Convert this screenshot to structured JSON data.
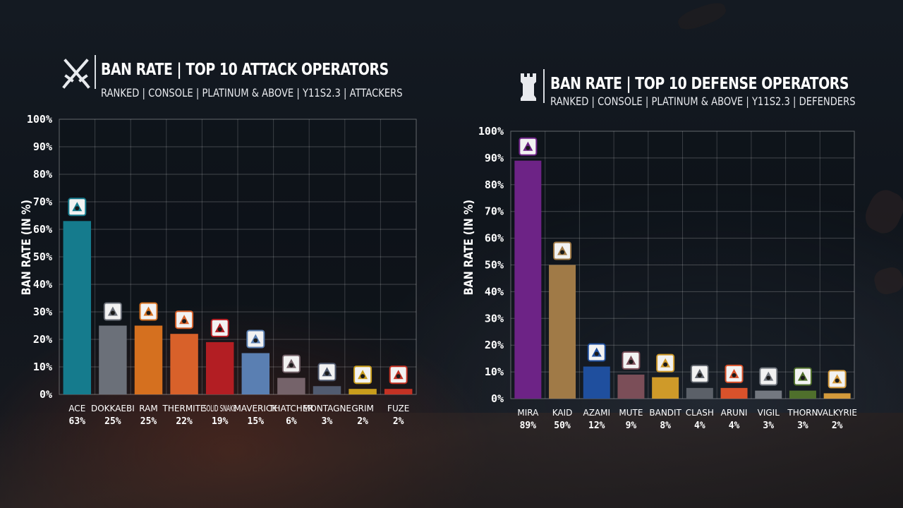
{
  "colors": {
    "ace": "#157b8d",
    "dokkaebi": "#6b7079",
    "ram": "#d5701f",
    "thermite": "#d8612a",
    "solid_snake": "#b31e23",
    "maverick": "#5a7fb2",
    "thatcher": "#75636a",
    "montagne": "#515b70",
    "grim": "#c99d1c",
    "fuze": "#c33224",
    "mira": "#6d2386",
    "kaid": "#a07a47",
    "azami": "#1f4f9e",
    "mute": "#7b4e58",
    "bandit": "#cf9a29",
    "clash": "#5b6068",
    "aruni": "#d9522b",
    "vigil": "#737880",
    "thorn": "#4f6f2c",
    "valkyrie": "#d39a3b"
  },
  "chart_data": [
    {
      "type": "bar",
      "title": "BAN RATE | TOP 10 ATTACK OPERATORS",
      "subtitle": "RANKED | CONSOLE | PLATINUM & ABOVE | Y11S2.3 | ATTACKERS",
      "title_icon": "crossed-swords-icon",
      "ylabel": "BAN RATE (IN %)",
      "xlabel": "",
      "ylim": [
        0,
        100
      ],
      "yticks": [
        "0%",
        "10%",
        "20%",
        "30%",
        "40%",
        "50%",
        "60%",
        "70%",
        "80%",
        "90%",
        "100%"
      ],
      "grid": true,
      "categories": [
        "ACE",
        "DOKKAEBI",
        "RAM",
        "THERMITE",
        "SOLID SNAKE",
        "MAVERICK",
        "THATCHER",
        "MONTAGNE",
        "GRIM",
        "FUZE"
      ],
      "values": [
        63,
        25,
        25,
        22,
        19,
        15,
        6,
        3,
        2,
        2
      ],
      "value_labels": [
        "63%",
        "25%",
        "25%",
        "22%",
        "19%",
        "15%",
        "6%",
        "3%",
        "2%",
        "2%"
      ],
      "bar_colors": [
        "#157b8d",
        "#6b7079",
        "#d5701f",
        "#d8612a",
        "#b31e23",
        "#5a7fb2",
        "#75636a",
        "#515b70",
        "#c99d1c",
        "#c33224"
      ],
      "icons": [
        "ace-icon",
        "dokkaebi-icon",
        "ram-icon",
        "thermite-icon",
        "solid-snake-icon",
        "maverick-icon",
        "thatcher-icon",
        "montagne-icon",
        "grim-icon",
        "fuze-icon"
      ]
    },
    {
      "type": "bar",
      "title": "BAN RATE | TOP 10 DEFENSE OPERATORS",
      "subtitle": "RANKED | CONSOLE | PLATINUM & ABOVE | Y11S2.3 | DEFENDERS",
      "title_icon": "tower-icon",
      "ylabel": "BAN RATE (IN %)",
      "xlabel": "",
      "ylim": [
        0,
        100
      ],
      "yticks": [
        "0%",
        "10%",
        "20%",
        "30%",
        "40%",
        "50%",
        "60%",
        "70%",
        "80%",
        "90%",
        "100%"
      ],
      "grid": true,
      "categories": [
        "MIRA",
        "KAID",
        "AZAMI",
        "MUTE",
        "BANDIT",
        "CLASH",
        "ARUNI",
        "VIGIL",
        "THORN",
        "VALKYRIE"
      ],
      "values": [
        89,
        50,
        12,
        9,
        8,
        4,
        4,
        3,
        3,
        2
      ],
      "value_labels": [
        "89%",
        "50%",
        "12%",
        "9%",
        "8%",
        "4%",
        "4%",
        "3%",
        "3%",
        "2%"
      ],
      "bar_colors": [
        "#6d2386",
        "#a07a47",
        "#1f4f9e",
        "#7b4e58",
        "#cf9a29",
        "#5b6068",
        "#d9522b",
        "#737880",
        "#4f6f2c",
        "#d39a3b"
      ],
      "icons": [
        "mira-icon",
        "kaid-icon",
        "azami-icon",
        "mute-icon",
        "bandit-icon",
        "clash-icon",
        "aruni-icon",
        "vigil-icon",
        "thorn-icon",
        "valkyrie-icon"
      ]
    }
  ]
}
